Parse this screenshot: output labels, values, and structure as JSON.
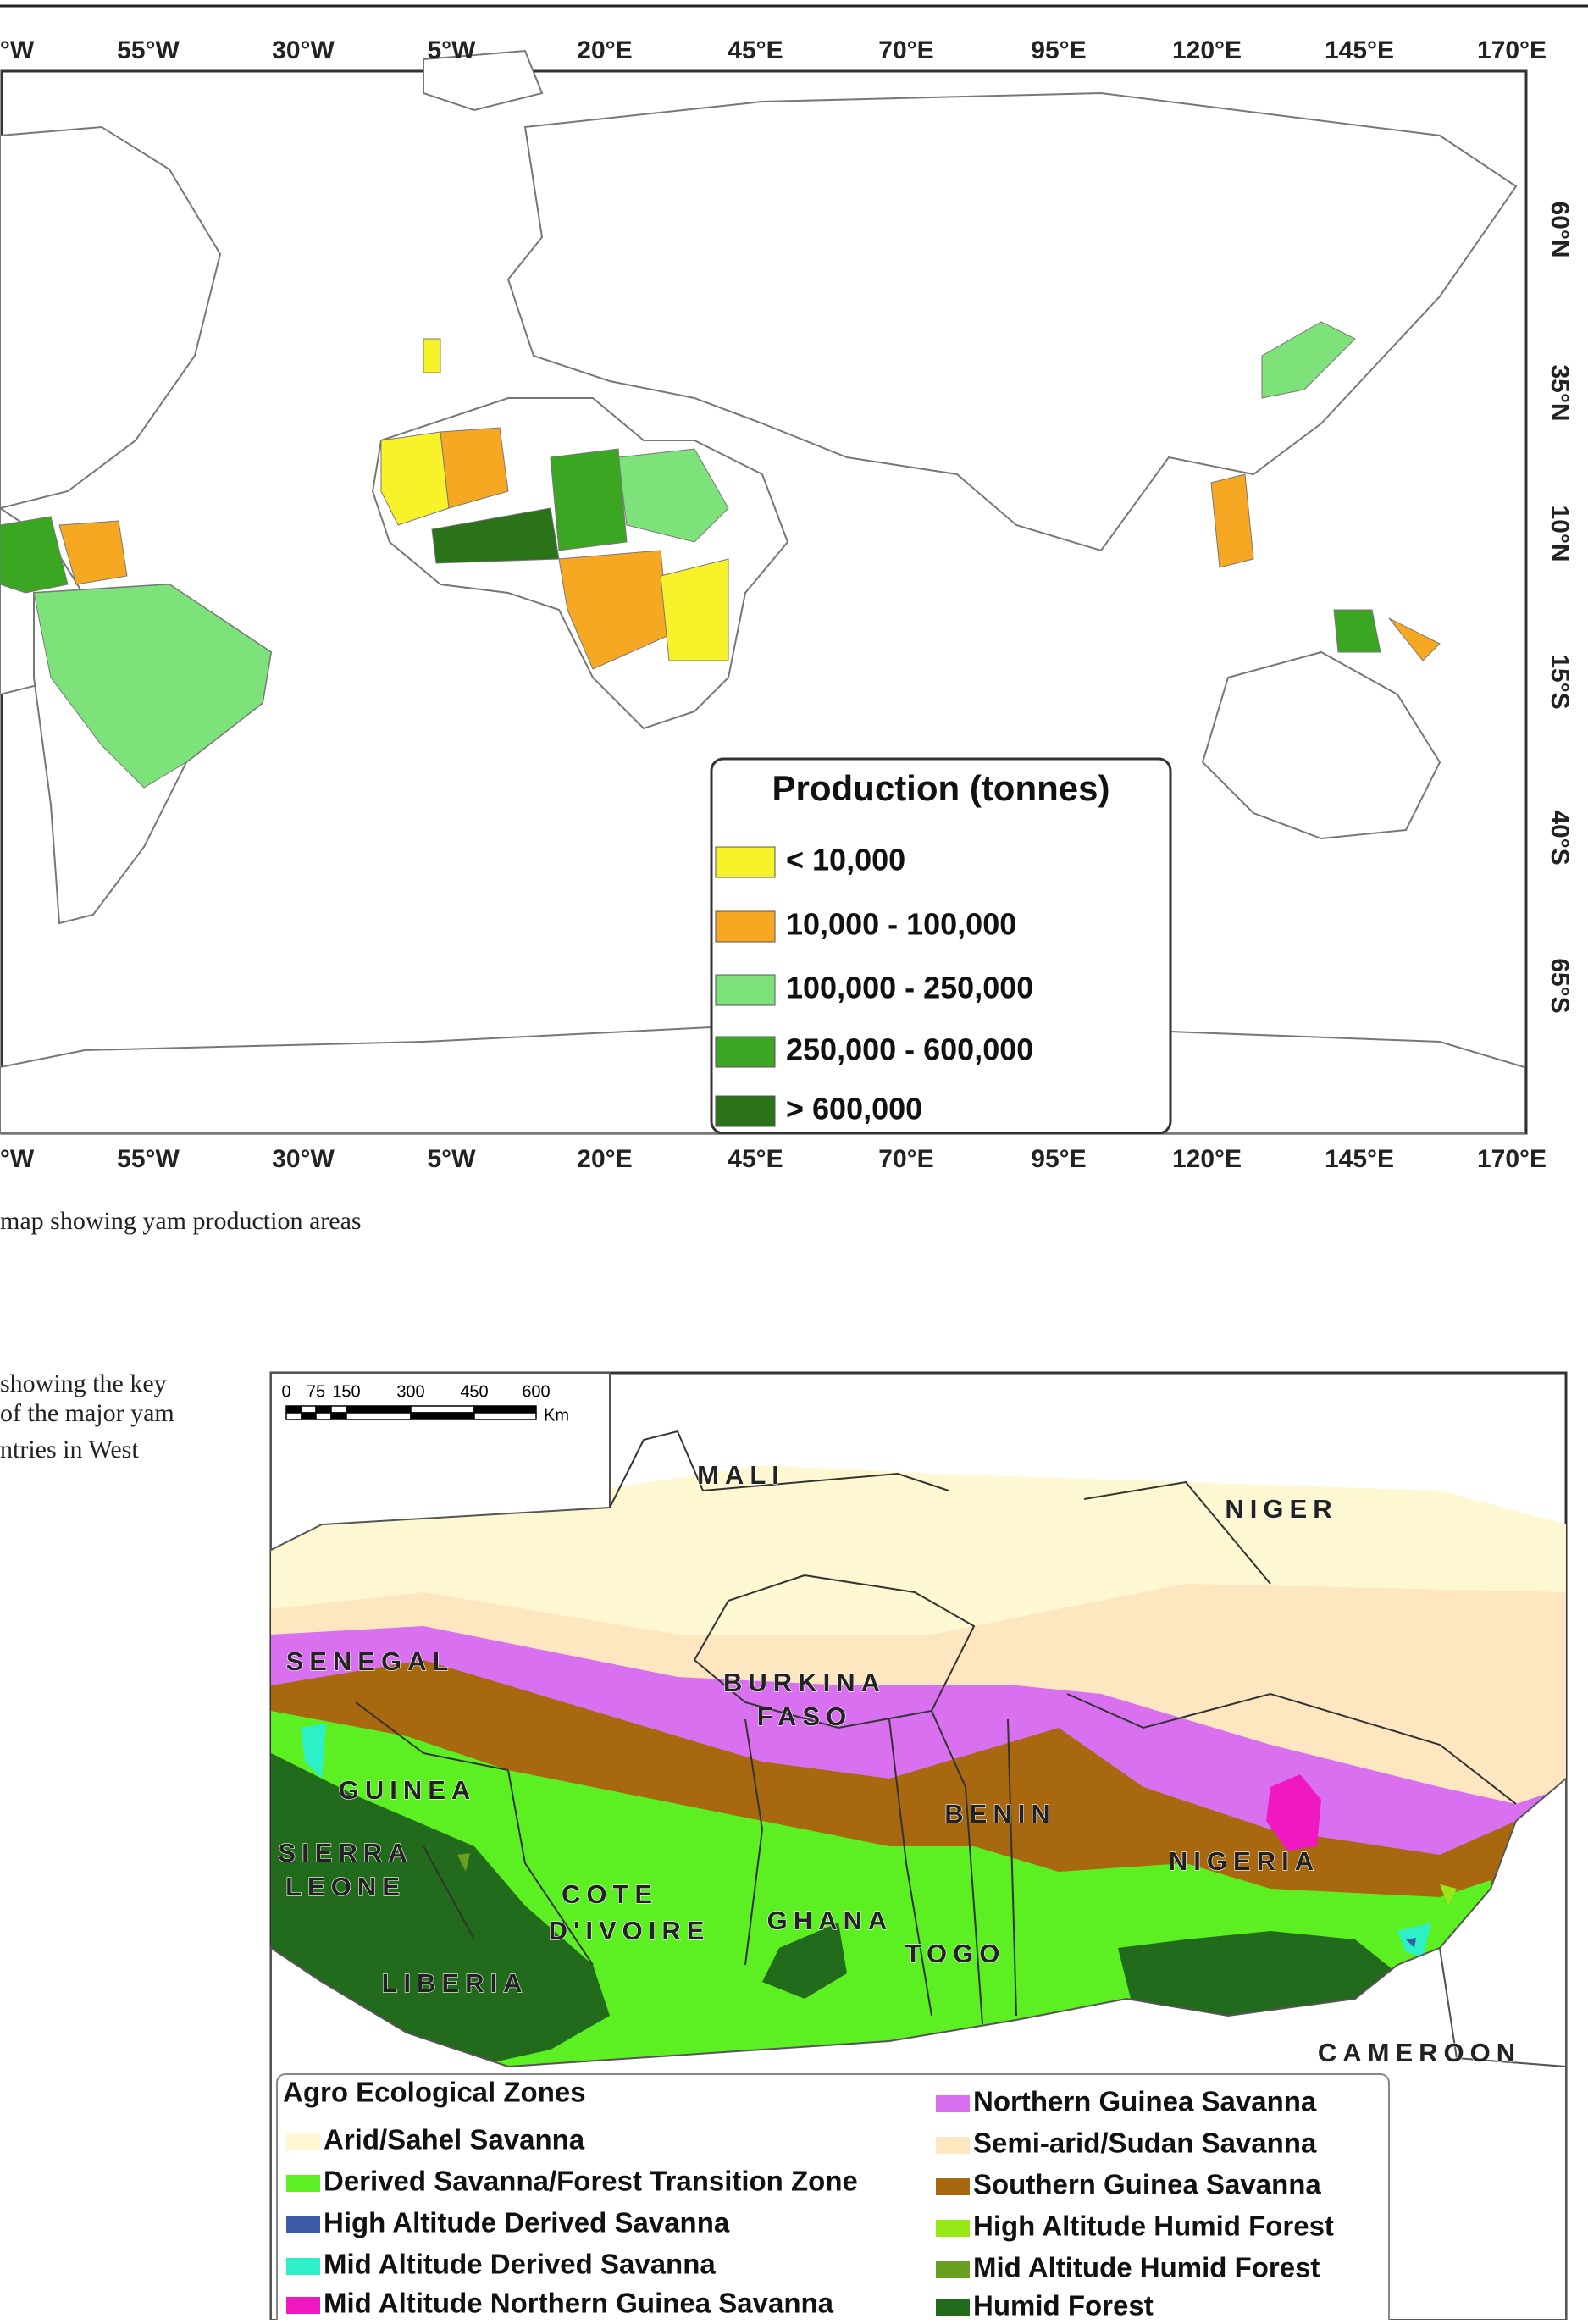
{
  "world_map": {
    "lon_labels": [
      "°W",
      "55°W",
      "30°W",
      "5°W",
      "20°E",
      "45°E",
      "70°E",
      "95°E",
      "120°E",
      "145°E",
      "170°E"
    ],
    "lat_labels": [
      "60°N",
      "35°N",
      "10°N",
      "15°S",
      "40°S",
      "65°S"
    ],
    "legend": {
      "title": "Production (tonnes)",
      "items": [
        {
          "label": "< 10,000",
          "color": "#f8f22a"
        },
        {
          "label": "10,000 - 100,000",
          "color": "#f7a823"
        },
        {
          "label": "100,000 - 250,000",
          "color": "#7ee27a"
        },
        {
          "label": "250,000 - 600,000",
          "color": "#3aa622"
        },
        {
          "label": "> 600,000",
          "color": "#2a7318"
        }
      ]
    }
  },
  "world_caption": "map showing yam production areas",
  "side_text": [
    "showing the key",
    "of the major yam",
    "ntries in West"
  ],
  "zone_map": {
    "scale_labels": [
      "0",
      "75",
      "150",
      "300",
      "450",
      "600"
    ],
    "scale_unit": "Km",
    "countries": [
      "MALI",
      "NIGER",
      "SENEGAL",
      "BURKINA",
      "FASO",
      "GUINEA",
      "SIERRA",
      "LEONE",
      "COTE",
      "D'IVOIRE",
      "GHANA",
      "BENIN",
      "NIGERIA",
      "TOGO",
      "LIBERIA",
      "CAMEROON"
    ],
    "legend": {
      "title": "Agro Ecological Zones",
      "items": [
        {
          "label": "Arid/Sahel Savanna",
          "color": "#fdf8d2"
        },
        {
          "label": "Derived Savanna/Forest Transition Zone",
          "color": "#5cf022"
        },
        {
          "label": "High Altitude Derived Savanna",
          "color": "#3b5ba8"
        },
        {
          "label": "Mid Altitude Derived Savanna",
          "color": "#2ef0c8"
        },
        {
          "label": "Mid Altitude Northern Guinea Savanna",
          "color": "#f018c0"
        },
        {
          "label": "Northern Guinea Savanna",
          "color": "#d870f0"
        },
        {
          "label": "Semi-arid/Sudan Savanna",
          "color": "#fde6c0"
        },
        {
          "label": "Southern Guinea Savanna",
          "color": "#a86810"
        },
        {
          "label": "High Altitude Humid Forest",
          "color": "#98e818"
        },
        {
          "label": "Mid Altitude Humid Forest",
          "color": "#6aa020"
        },
        {
          "label": "Humid Forest",
          "color": "#226a1c"
        }
      ]
    }
  }
}
